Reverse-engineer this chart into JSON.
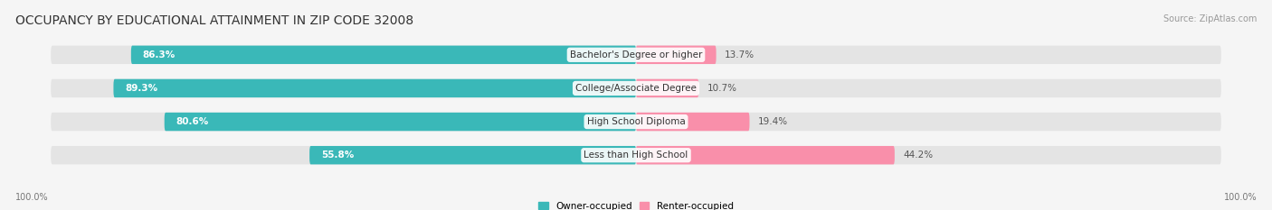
{
  "title": "OCCUPANCY BY EDUCATIONAL ATTAINMENT IN ZIP CODE 32008",
  "source": "Source: ZipAtlas.com",
  "categories": [
    "Less than High School",
    "High School Diploma",
    "College/Associate Degree",
    "Bachelor's Degree or higher"
  ],
  "owner_pct": [
    55.8,
    80.6,
    89.3,
    86.3
  ],
  "renter_pct": [
    44.2,
    19.4,
    10.7,
    13.7
  ],
  "owner_color": "#3ab8b8",
  "renter_color": "#f98faa",
  "bar_bg_color": "#e4e4e4",
  "title_fontsize": 10,
  "source_fontsize": 7,
  "label_fontsize": 7.5,
  "tick_fontsize": 7,
  "legend_fontsize": 7.5,
  "left_axis_label": "100.0%",
  "right_axis_label": "100.0%"
}
